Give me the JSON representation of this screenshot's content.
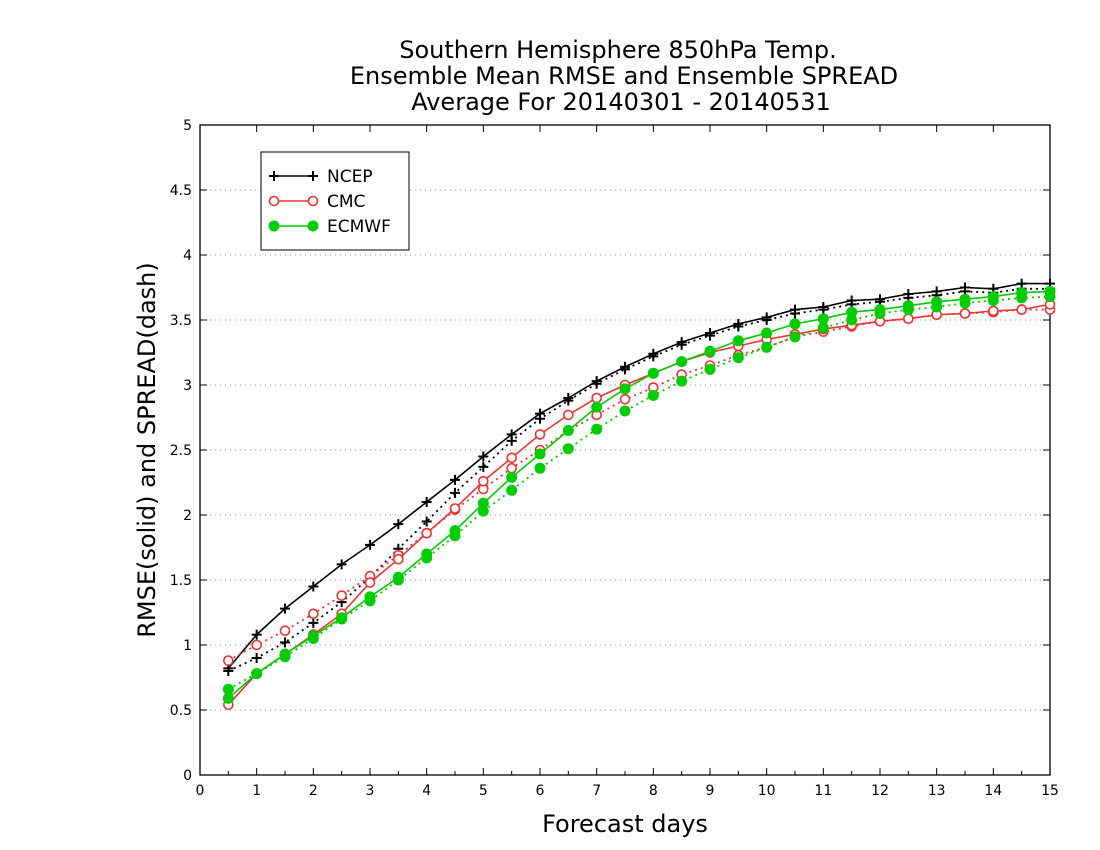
{
  "chart_data": {
    "type": "line",
    "title_lines": [
      "Southern Hemisphere 850hPa Temp.",
      "Ensemble Mean RMSE and Ensemble SPREAD",
      "Average For 20140301 - 20140531"
    ],
    "xlabel": "Forecast days",
    "ylabel": "RMSE(solid) and SPREAD(dash)",
    "xlim": [
      0,
      15
    ],
    "ylim": [
      0,
      5
    ],
    "xticks": [
      "0",
      "1",
      "2",
      "3",
      "4",
      "5",
      "6",
      "7",
      "8",
      "9",
      "10",
      "11",
      "12",
      "13",
      "14",
      "15"
    ],
    "yticks": [
      "0",
      "0.5",
      "1",
      "1.5",
      "2",
      "2.5",
      "3",
      "3.5",
      "4",
      "4.5",
      "5"
    ],
    "grid": "horizontal-dotted",
    "legend_position": "top-left",
    "x": [
      0.5,
      1,
      1.5,
      2,
      2.5,
      3,
      3.5,
      4,
      4.5,
      5,
      5.5,
      6,
      6.5,
      7,
      7.5,
      8,
      8.5,
      9,
      9.5,
      10,
      10.5,
      11,
      11.5,
      12,
      12.5,
      13,
      13.5,
      14,
      14.5,
      15
    ],
    "series": [
      {
        "name": "NCEP",
        "color": "#000000",
        "marker": "plus",
        "rmse": [
          0.82,
          1.08,
          1.28,
          1.45,
          1.62,
          1.77,
          1.93,
          2.1,
          2.27,
          2.45,
          2.62,
          2.78,
          2.9,
          3.03,
          3.14,
          3.24,
          3.33,
          3.4,
          3.47,
          3.52,
          3.58,
          3.6,
          3.65,
          3.66,
          3.7,
          3.72,
          3.75,
          3.74,
          3.78,
          3.78
        ],
        "spread": [
          0.8,
          0.9,
          1.02,
          1.17,
          1.33,
          1.52,
          1.74,
          1.95,
          2.17,
          2.37,
          2.57,
          2.74,
          2.88,
          3.01,
          3.12,
          3.22,
          3.31,
          3.38,
          3.45,
          3.5,
          3.55,
          3.58,
          3.62,
          3.64,
          3.67,
          3.69,
          3.72,
          3.71,
          3.74,
          3.74
        ]
      },
      {
        "name": "CMC",
        "color": "#ee3333",
        "marker": "open-circle",
        "rmse": [
          0.54,
          0.78,
          0.93,
          1.08,
          1.24,
          1.48,
          1.66,
          1.86,
          2.05,
          2.26,
          2.44,
          2.62,
          2.77,
          2.9,
          3.0,
          3.09,
          3.18,
          3.25,
          3.3,
          3.35,
          3.39,
          3.43,
          3.46,
          3.49,
          3.51,
          3.54,
          3.55,
          3.57,
          3.58,
          3.62
        ],
        "spread": [
          0.88,
          1.0,
          1.11,
          1.24,
          1.38,
          1.53,
          1.69,
          1.86,
          2.04,
          2.2,
          2.36,
          2.5,
          2.65,
          2.77,
          2.89,
          2.98,
          3.08,
          3.15,
          3.23,
          3.29,
          3.37,
          3.41,
          3.45,
          3.49,
          3.51,
          3.54,
          3.55,
          3.56,
          3.58,
          3.58
        ]
      },
      {
        "name": "ECMWF",
        "color": "#00cc00",
        "marker": "filled-circle",
        "rmse": [
          0.59,
          0.78,
          0.93,
          1.07,
          1.21,
          1.37,
          1.52,
          1.7,
          1.88,
          2.09,
          2.29,
          2.47,
          2.65,
          2.83,
          2.97,
          3.09,
          3.18,
          3.26,
          3.34,
          3.4,
          3.47,
          3.51,
          3.56,
          3.58,
          3.61,
          3.64,
          3.66,
          3.68,
          3.71,
          3.72
        ],
        "spread": [
          0.66,
          0.78,
          0.91,
          1.05,
          1.2,
          1.34,
          1.5,
          1.67,
          1.84,
          2.03,
          2.19,
          2.36,
          2.51,
          2.66,
          2.8,
          2.92,
          3.03,
          3.12,
          3.21,
          3.29,
          3.37,
          3.44,
          3.5,
          3.55,
          3.58,
          3.6,
          3.63,
          3.65,
          3.67,
          3.68
        ]
      }
    ]
  }
}
